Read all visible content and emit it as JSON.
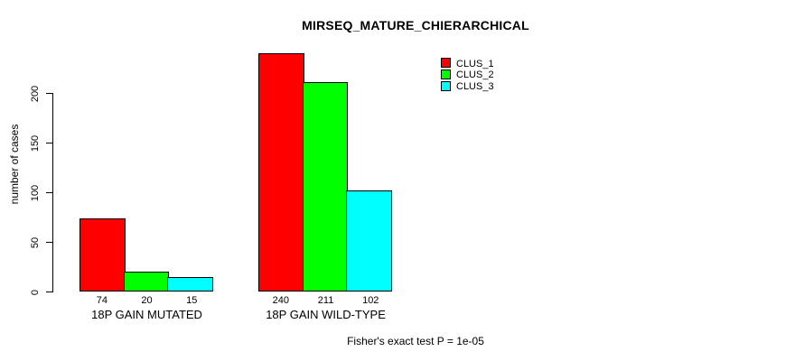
{
  "chart_data": {
    "type": "bar",
    "title": "MIRSEQ_MATURE_CHIERARCHICAL",
    "ylabel": "number of cases",
    "xlabel": "",
    "footnote": "Fisher's exact test P = 1e-05",
    "categories": [
      "18P GAIN MUTATED",
      "18P GAIN WILD-TYPE"
    ],
    "series": [
      {
        "name": "CLUS_1",
        "color": "#ff0000",
        "values": [
          74,
          240
        ]
      },
      {
        "name": "CLUS_2",
        "color": "#00ff00",
        "values": [
          20,
          211
        ]
      },
      {
        "name": "CLUS_3",
        "color": "#00ffff",
        "values": [
          15,
          102
        ]
      }
    ],
    "bar_value_labels": [
      [
        74,
        20,
        15
      ],
      [
        240,
        211,
        102
      ]
    ],
    "yticks": [
      0,
      50,
      100,
      150,
      200
    ],
    "ylim": [
      0,
      200
    ],
    "grid": false,
    "legend_position": "top-right",
    "background_color": "#ffffff",
    "text_color": "#000000"
  }
}
